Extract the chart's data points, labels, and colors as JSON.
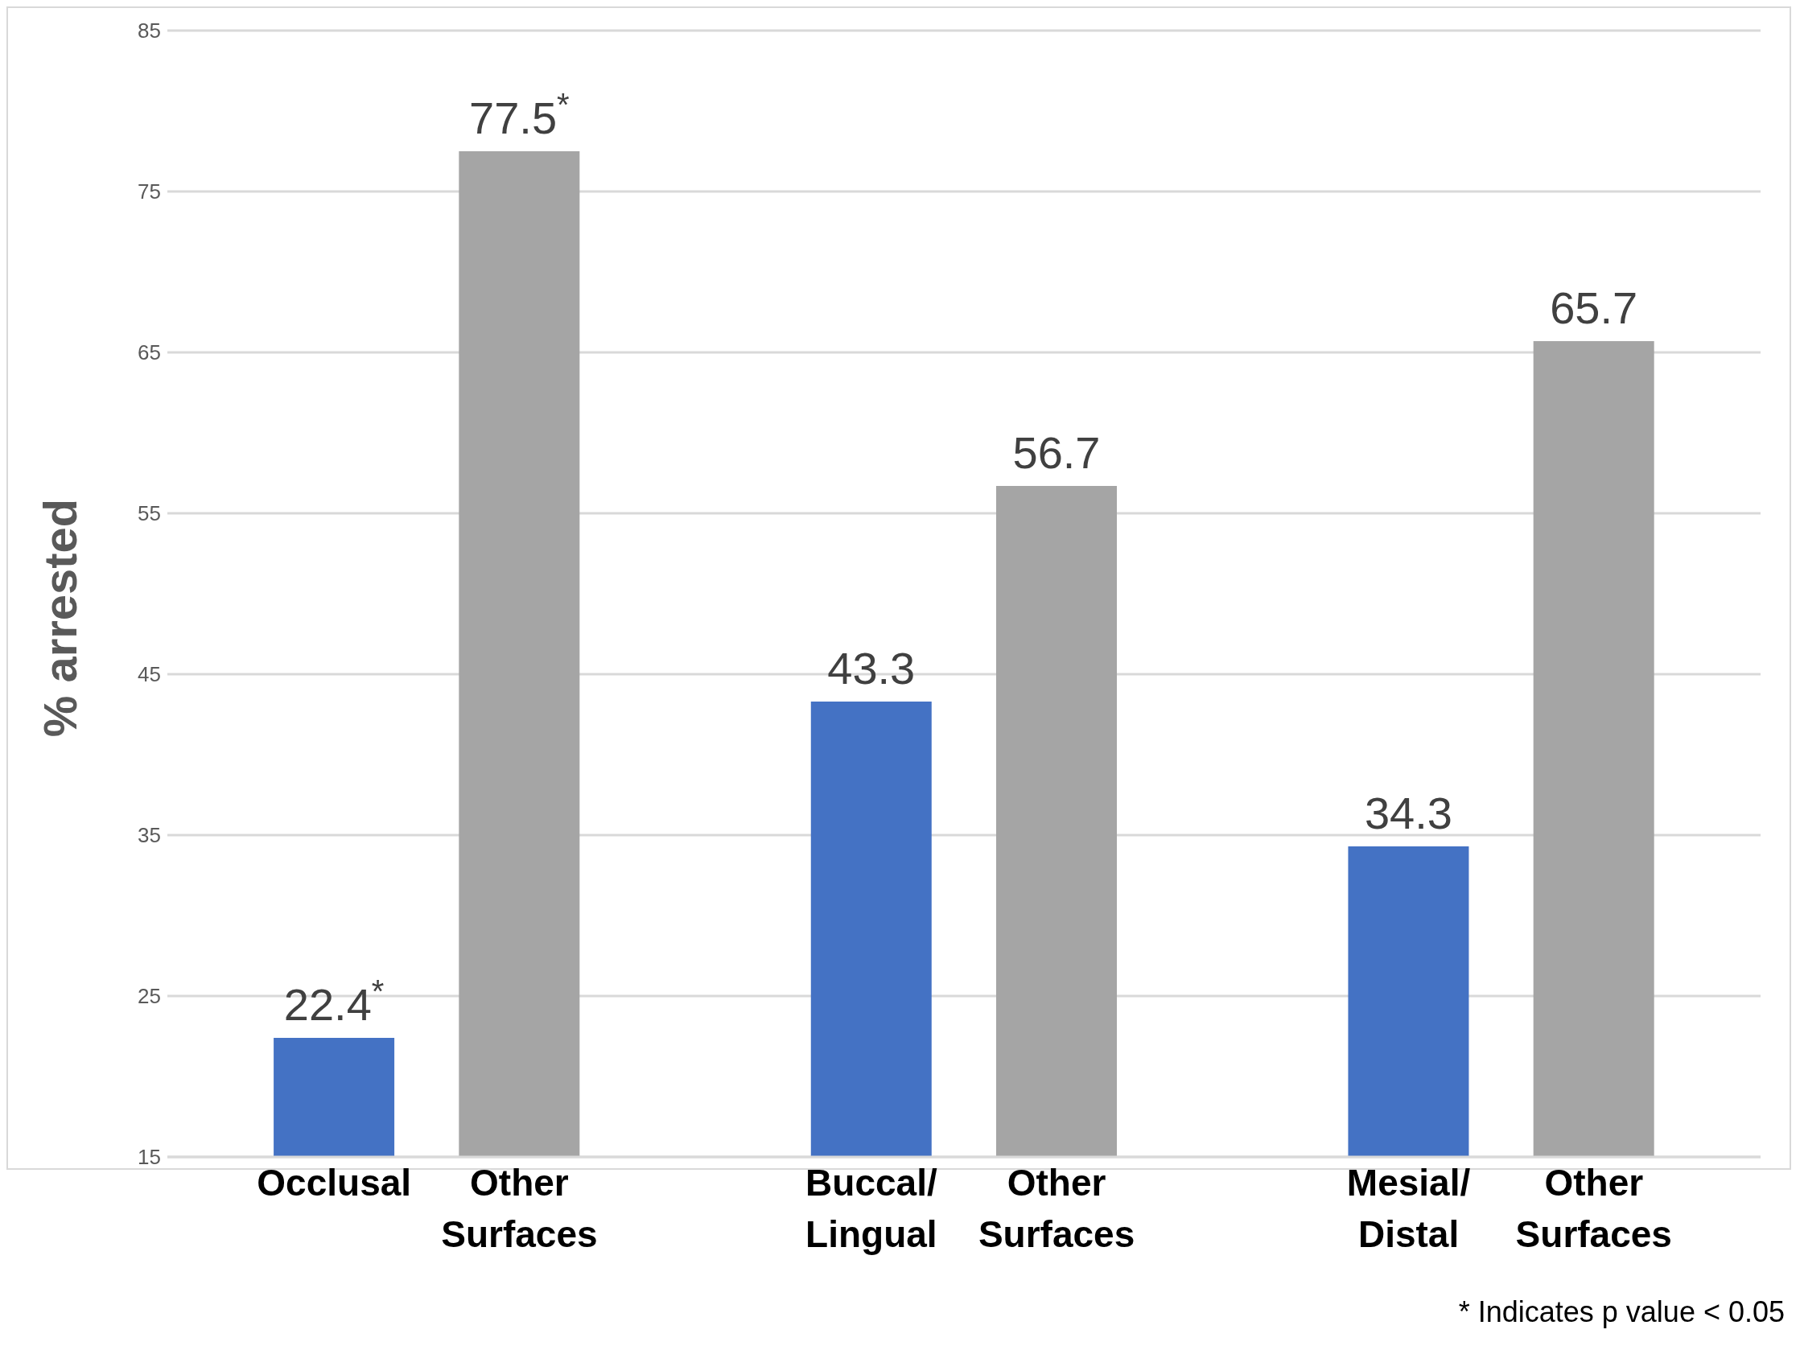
{
  "chart_data": {
    "type": "bar",
    "ylabel": "% arrested",
    "categories": [
      "Occlusal",
      "Other Surfaces",
      "Buccal/ Lingual",
      "Other Surfaces",
      "Mesial/ Distal",
      "Other Surfaces"
    ],
    "values": [
      22.4,
      77.5,
      43.3,
      56.7,
      34.3,
      65.7
    ],
    "colors": [
      "#4472c4",
      "#a5a5a5",
      "#4472c4",
      "#a5a5a5",
      "#4472c4",
      "#a5a5a5"
    ],
    "value_labels": [
      "22.4$^{*}$",
      "77.5$^{*}$",
      "43.3",
      "56.7",
      "34.3",
      "65.7"
    ],
    "ylim": [
      15,
      85
    ],
    "yticks": [
      15,
      25,
      35,
      45,
      55,
      65,
      75,
      85
    ],
    "grid": "y",
    "annotations": [
      "* Indicates p value < 0.05"
    ]
  }
}
